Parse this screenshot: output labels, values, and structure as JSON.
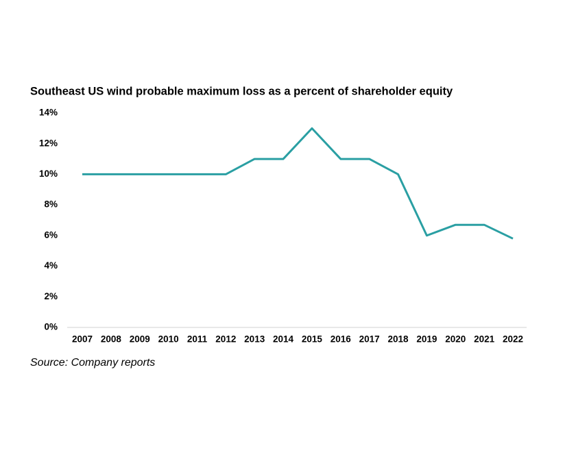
{
  "chart_data": {
    "type": "line",
    "title": "Southeast US wind probable maximum loss as a percent of shareholder equity",
    "source": "Source: Company reports",
    "categories": [
      "2007",
      "2008",
      "2009",
      "2010",
      "2011",
      "2012",
      "2013",
      "2014",
      "2015",
      "2016",
      "2017",
      "2018",
      "2019",
      "2020",
      "2021",
      "2022"
    ],
    "values": [
      10,
      10,
      10,
      10,
      10,
      10,
      11,
      11,
      13,
      11,
      11,
      10,
      6,
      6.7,
      6.7,
      5.8
    ],
    "color": "#2a9fa3",
    "ylim": [
      0,
      14
    ],
    "yticks": [
      {
        "value": 0,
        "label": "0%"
      },
      {
        "value": 2,
        "label": "2%"
      },
      {
        "value": 4,
        "label": "4%"
      },
      {
        "value": 6,
        "label": "6%"
      },
      {
        "value": 8,
        "label": "8%"
      },
      {
        "value": 10,
        "label": "10%"
      },
      {
        "value": 12,
        "label": "12%"
      },
      {
        "value": 14,
        "label": "14%"
      }
    ],
    "grid": false
  }
}
